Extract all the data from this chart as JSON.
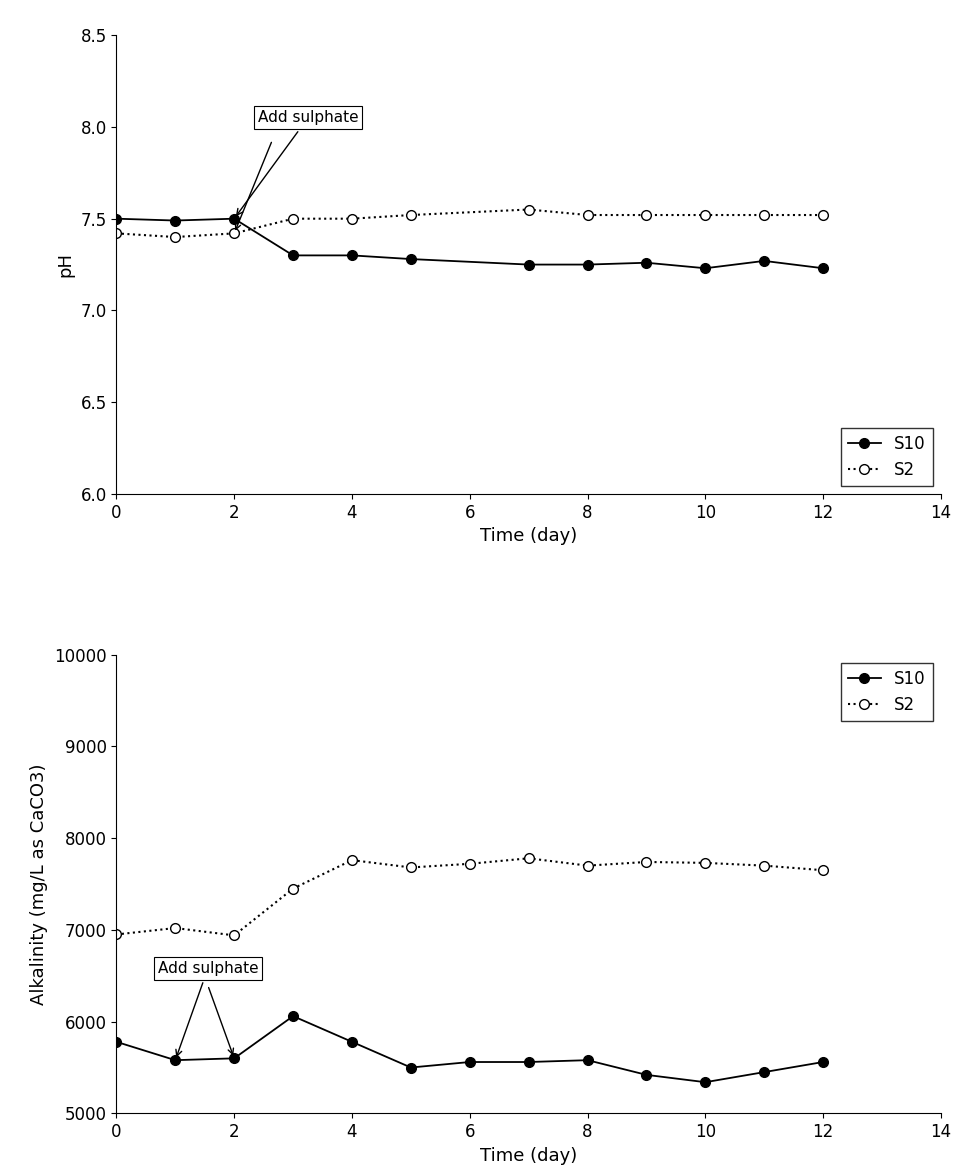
{
  "ph_s10_x": [
    0,
    1,
    2,
    3,
    4,
    5,
    7,
    8,
    9,
    10,
    11,
    12
  ],
  "ph_s10_y": [
    7.5,
    7.49,
    7.5,
    7.3,
    7.3,
    7.28,
    7.25,
    7.25,
    7.26,
    7.23,
    7.27,
    7.23
  ],
  "ph_s2_x": [
    0,
    1,
    2,
    3,
    4,
    5,
    7,
    8,
    9,
    10,
    11,
    12
  ],
  "ph_s2_y": [
    7.42,
    7.4,
    7.42,
    7.5,
    7.5,
    7.52,
    7.55,
    7.52,
    7.52,
    7.52,
    7.52,
    7.52
  ],
  "alk_s10_x": [
    0,
    1,
    2,
    3,
    4,
    5,
    6,
    7,
    8,
    9,
    10,
    11,
    12
  ],
  "alk_s10_y": [
    5780,
    5580,
    5600,
    6060,
    5780,
    5500,
    5560,
    5560,
    5580,
    5420,
    5340,
    5450,
    5560
  ],
  "alk_s2_x": [
    0,
    1,
    2,
    3,
    4,
    5,
    6,
    7,
    8,
    9,
    10,
    11,
    12
  ],
  "alk_s2_y": [
    6950,
    7020,
    6940,
    7450,
    7760,
    7680,
    7720,
    7780,
    7700,
    7740,
    7730,
    7700,
    7650
  ],
  "ph_ylim": [
    6.0,
    8.5
  ],
  "ph_yticks": [
    6.0,
    6.5,
    7.0,
    7.5,
    8.0,
    8.5
  ],
  "alk_ylim": [
    5000,
    10000
  ],
  "alk_yticks": [
    5000,
    6000,
    7000,
    8000,
    9000,
    10000
  ],
  "xlim": [
    0,
    14
  ],
  "xticks": [
    0,
    2,
    4,
    6,
    8,
    10,
    12,
    14
  ],
  "xlabel": "Time (day)",
  "ph_ylabel": "pH",
  "alk_ylabel": "Alkalinity (mg/L as CaCO3)",
  "s10_label": "S10",
  "s2_label": "S2",
  "annotation_text": "Add sulphate",
  "line_color": "#000000",
  "bg_color": "#ffffff",
  "marker_size": 7,
  "font_size": 13,
  "tick_font_size": 12
}
